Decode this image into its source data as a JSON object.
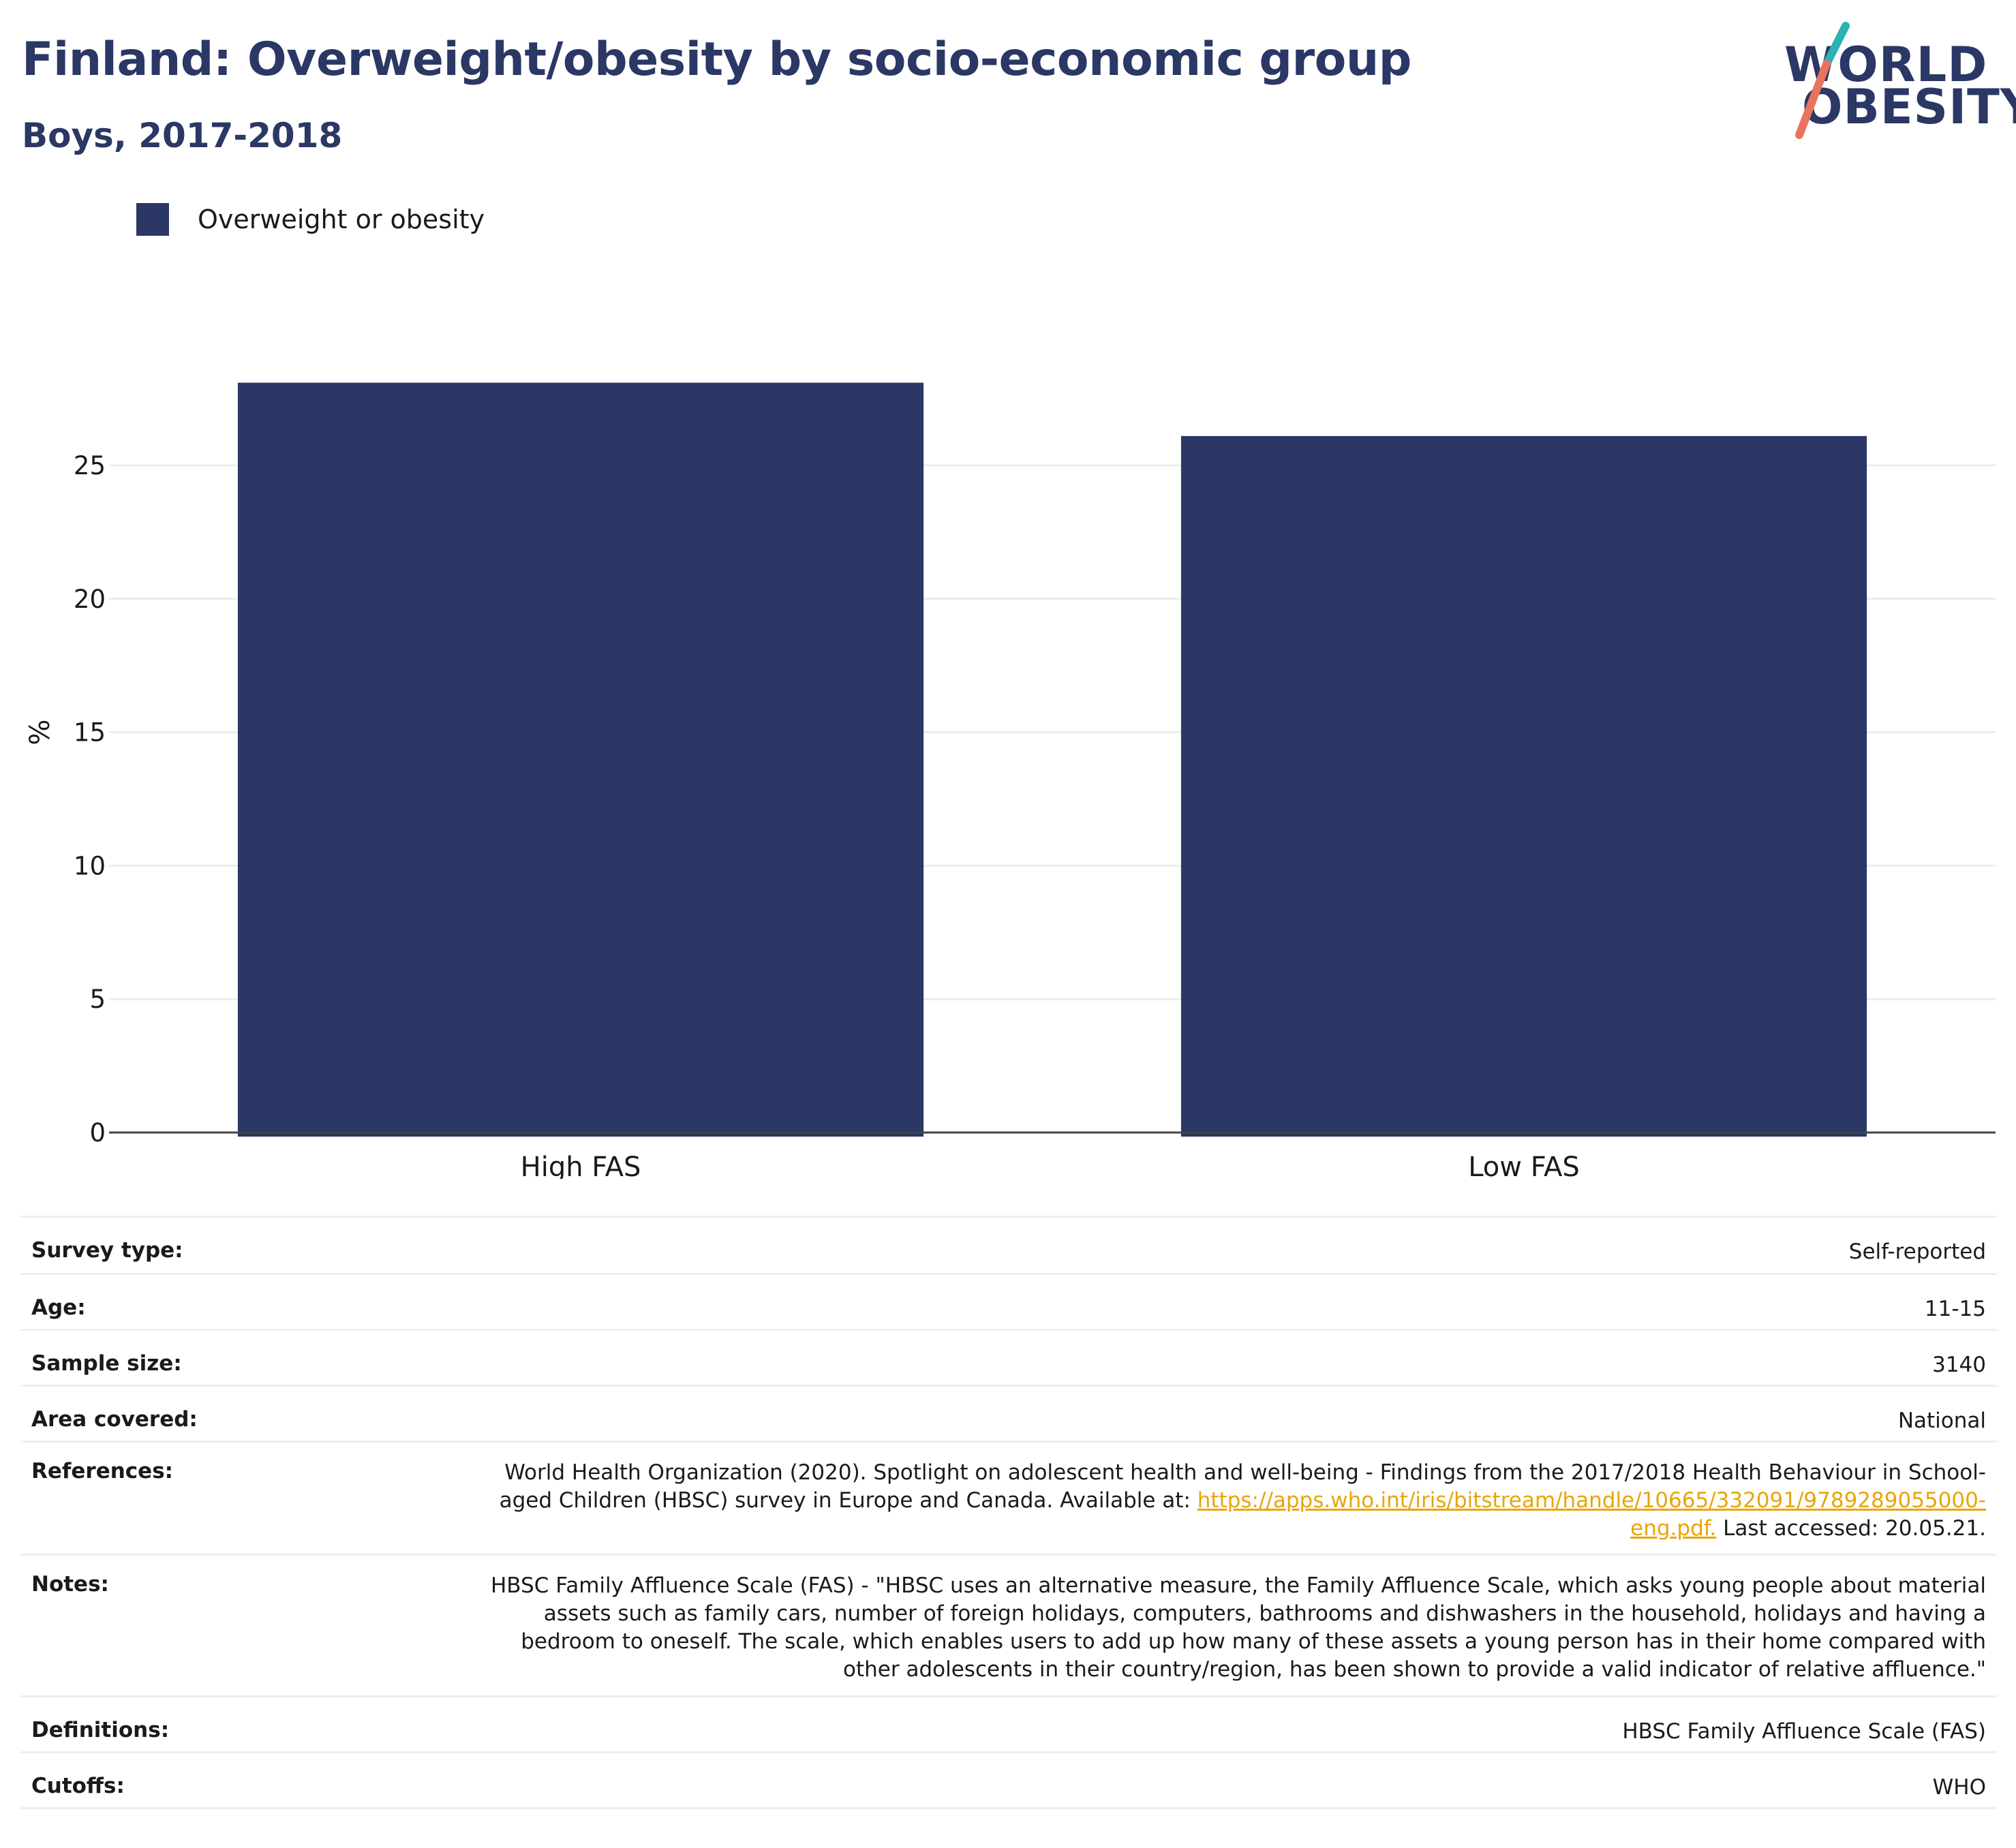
{
  "header": {
    "title": "Finland: Overweight/obesity by socio-economic group",
    "subtitle": "Boys, 2017-2018"
  },
  "logo": {
    "line1": "WORLD",
    "line2": "OBESITY",
    "colors": {
      "text": "#2b3764",
      "slash_top": "#2bb3b1",
      "slash_bottom": "#e8735f"
    }
  },
  "legend": {
    "items": [
      {
        "label": "Overweight or obesity",
        "color": "#2b3764"
      }
    ]
  },
  "chart_data": {
    "type": "bar",
    "categories": [
      "High FAS",
      "Low FAS"
    ],
    "series": [
      {
        "name": "Overweight or obesity",
        "values": [
          28.1,
          26.1
        ],
        "color": "#2b3764"
      }
    ],
    "title": "Finland: Overweight/obesity by socio-economic group",
    "subtitle": "Boys, 2017-2018",
    "xlabel": "",
    "ylabel": "%",
    "ylim": [
      0,
      30
    ],
    "yticks": [
      0,
      5,
      10,
      15,
      20,
      25
    ],
    "grid": true,
    "legend_position": "top-left"
  },
  "meta": {
    "rows": [
      {
        "label": "Survey type:",
        "value": "Self-reported"
      },
      {
        "label": "Age:",
        "value": "11-15"
      },
      {
        "label": "Sample size:",
        "value": "3140"
      },
      {
        "label": "Area covered:",
        "value": "National"
      },
      {
        "label": "References:",
        "value": "World Health Organization (2020). Spotlight on adolescent health and well-being - Findings from the 2017/2018 Health Behaviour in School-aged Children (HBSC) survey in Europe and Canada. Available at:",
        "link": "https://apps.who.int/iris/bitstream/handle/10665/332091/9789289055000-eng.pdf.",
        "suffix": " Last accessed: 20.05.21."
      },
      {
        "label": "Notes:",
        "value": "HBSC Family Affluence Scale (FAS) - \"HBSC uses an alternative measure, the Family Affluence Scale, which asks young people about material assets such as family cars, number of foreign holidays, computers, bathrooms and dishwashers in the household, holidays and having a bedroom to oneself. The scale, which enables users to add up how many of these assets a young person has in their home compared with other adolescents in their country/region, has been shown to provide a valid indicator of relative affluence.\""
      },
      {
        "label": "Definitions:",
        "value": "HBSC Family Affluence Scale (FAS)"
      },
      {
        "label": "Cutoffs:",
        "value": "WHO"
      }
    ]
  }
}
